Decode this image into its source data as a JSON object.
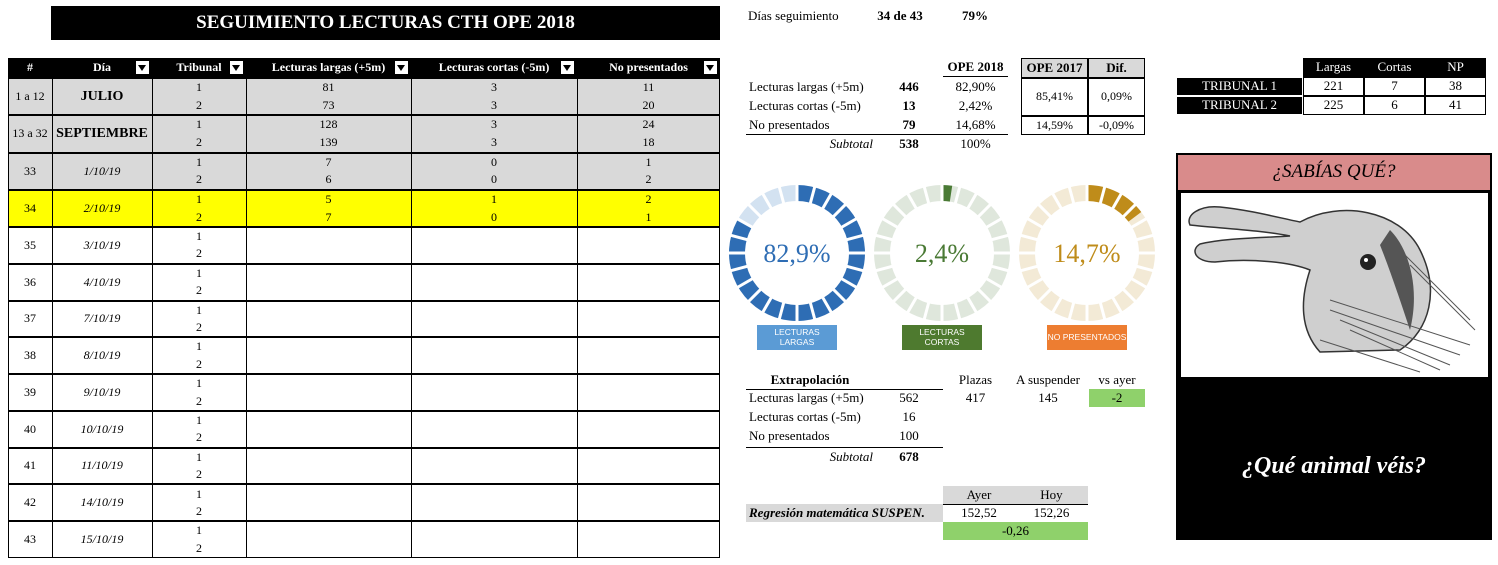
{
  "title": "SEGUIMIENTO LECTURAS CTH OPE 2018",
  "main_table": {
    "headers": [
      "#",
      "Día",
      "Tribunal",
      "Lecturas largas (+5m)",
      "Lecturas cortas (-5m)",
      "No presentados"
    ],
    "rows": [
      {
        "num": "1 a 12",
        "day": "JULIO",
        "tribunal": [
          1,
          2
        ],
        "largas": [
          81,
          73
        ],
        "cortas": [
          3,
          3
        ],
        "np": [
          11,
          20
        ],
        "fill": "#d9d9d9"
      },
      {
        "num": "13 a 32",
        "day": "SEPTIEMBRE",
        "tribunal": [
          1,
          2
        ],
        "largas": [
          128,
          139
        ],
        "cortas": [
          3,
          3
        ],
        "np": [
          24,
          18
        ],
        "fill": "#d9d9d9"
      },
      {
        "num": "33",
        "day": "1/10/19",
        "tribunal": [
          1,
          2
        ],
        "largas": [
          7,
          6
        ],
        "cortas": [
          0,
          0
        ],
        "np": [
          1,
          2
        ],
        "fill": "#d9d9d9"
      },
      {
        "num": "34",
        "day": "2/10/19",
        "tribunal": [
          1,
          2
        ],
        "largas": [
          5,
          7
        ],
        "cortas": [
          1,
          0
        ],
        "np": [
          2,
          1
        ],
        "fill": "#ffff00"
      },
      {
        "num": "35",
        "day": "3/10/19",
        "tribunal": [
          1,
          2
        ]
      },
      {
        "num": "36",
        "day": "4/10/19",
        "tribunal": [
          1,
          2
        ]
      },
      {
        "num": "37",
        "day": "7/10/19",
        "tribunal": [
          1,
          2
        ]
      },
      {
        "num": "38",
        "day": "8/10/19",
        "tribunal": [
          1,
          2
        ]
      },
      {
        "num": "39",
        "day": "9/10/19",
        "tribunal": [
          1,
          2
        ]
      },
      {
        "num": "40",
        "day": "10/10/19",
        "tribunal": [
          1,
          2
        ]
      },
      {
        "num": "41",
        "day": "11/10/19",
        "tribunal": [
          1,
          2
        ]
      },
      {
        "num": "42",
        "day": "14/10/19",
        "tribunal": [
          1,
          2
        ]
      },
      {
        "num": "43",
        "day": "15/10/19",
        "tribunal": [
          1,
          2
        ]
      }
    ]
  },
  "tracking": {
    "label": "Días seguimiento",
    "days": "34 de 43",
    "percent": "79%"
  },
  "summary": {
    "header": "OPE 2018",
    "rows": [
      {
        "label": "Lecturas largas  (+5m)",
        "count": 446,
        "percent": "82,90%"
      },
      {
        "label": "Lecturas cortas (-5m)",
        "count": 13,
        "percent": "2,42%"
      },
      {
        "label": "No presentados",
        "count": 79,
        "percent": "14,68%"
      }
    ],
    "subtotal": {
      "label": "Subtotal",
      "count": 538,
      "percent": "100%"
    }
  },
  "ope2017": {
    "headers": [
      "OPE 2017",
      "Dif."
    ],
    "rows": [
      [
        "85,41%",
        "0,09%"
      ],
      [
        "14,59%",
        "-0,09%"
      ]
    ]
  },
  "donuts": [
    {
      "value": 82.9,
      "label": "82,9%",
      "caption": "LECTURAS LARGAS",
      "color": "#2e6db4",
      "light": "#d3e2f1",
      "caption_color": "#5b9bd5"
    },
    {
      "value": 2.4,
      "label": "2,4%",
      "caption": "LECTURAS CORTAS",
      "color": "#4a7a35",
      "light": "#dfe7dc",
      "caption_color": "#4e7a2f"
    },
    {
      "value": 14.7,
      "label": "14,7%",
      "caption": "NO PRESENTADOS",
      "color": "#bf8c1a",
      "light": "#f3ead6",
      "caption_color": "#ed7d31"
    }
  ],
  "extrapolation": {
    "headers": [
      "Extrapolación",
      "Plazas",
      "A suspender",
      "vs ayer"
    ],
    "rows": [
      {
        "label": "Lecturas largas  (+5m)",
        "count": 562,
        "plazas": 417,
        "suspender": 145,
        "vs_ayer": -2
      },
      {
        "label": "Lecturas cortas (-5m)",
        "count": 16
      },
      {
        "label": "No presentados",
        "count": 100
      }
    ],
    "subtotal": {
      "label": "Subtotal",
      "count": 678
    }
  },
  "regression": {
    "headers": [
      "Ayer",
      "Hoy"
    ],
    "label": "Regresión matemática SUSPEN.",
    "ayer": "152,52",
    "hoy": "152,26",
    "diff": "-0,26"
  },
  "tribunals": {
    "headers": [
      "Largas",
      "Cortas",
      "NP"
    ],
    "rows": [
      {
        "name": "TRIBUNAL 1",
        "values": [
          221,
          7,
          38
        ]
      },
      {
        "name": "TRIBUNAL 2",
        "values": [
          225,
          6,
          41
        ]
      }
    ]
  },
  "trivia": {
    "title": "¿SABÍAS QUÉ?",
    "question": "¿Qué animal véis?"
  }
}
